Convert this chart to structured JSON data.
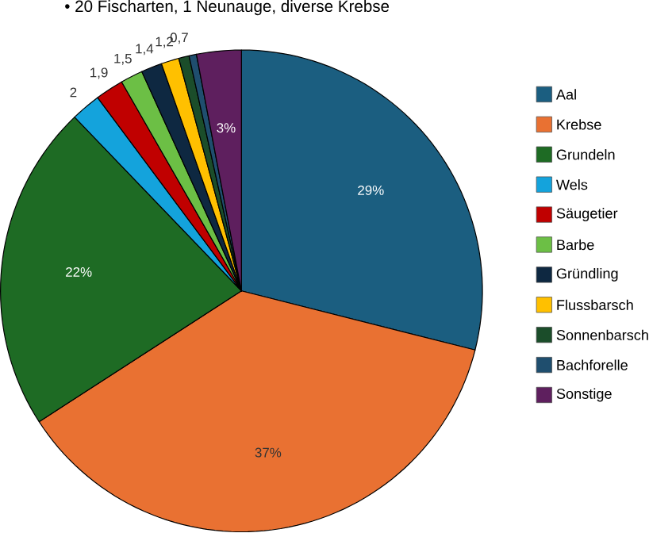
{
  "chart_data": {
    "type": "pie",
    "title": "• 20 Fischarten, 1 Neunauge, diverse Krebse",
    "categories": [
      "Aal",
      "Krebse",
      "Grundeln",
      "Wels",
      "Säugetier",
      "Barbe",
      "Gründling",
      "Flussbarsch",
      "Sonnenbarsch",
      "Bachforelle",
      "Sonstige"
    ],
    "values": [
      29,
      37,
      22,
      2,
      1.9,
      1.5,
      1.4,
      1.2,
      0.7,
      0.5,
      3
    ],
    "value_labels": [
      "29%",
      "37%",
      "22%",
      "2",
      "1,9",
      "1,5",
      "1,4",
      "1,2",
      "0,7",
      null,
      "3%"
    ],
    "colors": [
      "#1b5e80",
      "#e97132",
      "#1e6b24",
      "#14a3dc",
      "#c00000",
      "#6cbf45",
      "#0e2841",
      "#ffc000",
      "#1b4d2a",
      "#1f4e6e",
      "#5e1f5e"
    ],
    "legend": "right"
  }
}
